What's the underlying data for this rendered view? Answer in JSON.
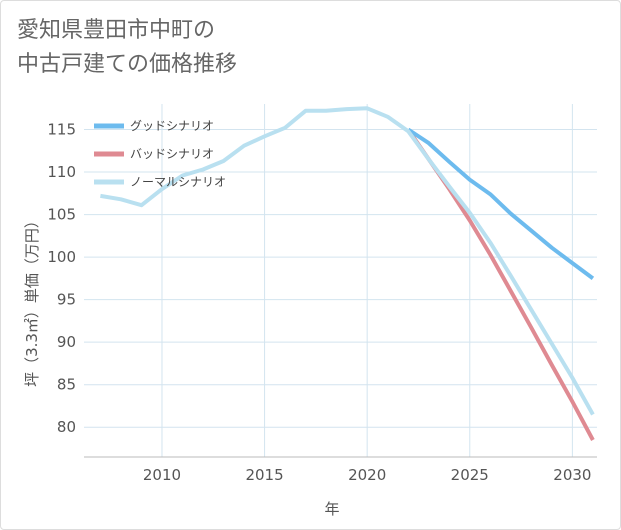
{
  "page": {
    "title_line1": "愛知県豊田市中町の",
    "title_line2": "中古戸建ての価格推移"
  },
  "colors": {
    "good": "#6dbbee",
    "bad": "#df8a92",
    "normal": "#b9e0f0",
    "grid": "#d3e4ef",
    "axis": "#555555"
  },
  "chart_data": {
    "type": "line",
    "title": "愛知県豊田市中町の中古戸建ての価格推移",
    "xlabel": "年",
    "ylabel": "坪（3.3㎡）単価（万円）",
    "xlim": [
      2006.2,
      2031.2
    ],
    "ylim": [
      76.5,
      118
    ],
    "x_ticks": [
      2010,
      2015,
      2020,
      2025,
      2030
    ],
    "y_ticks": [
      80,
      85,
      90,
      95,
      100,
      105,
      110,
      115
    ],
    "legend_position": "top-left",
    "series": [
      {
        "name": "グッドシナリオ",
        "color_key": "good",
        "x": [
          2022,
          2023,
          2024,
          2025,
          2026,
          2027,
          2028,
          2029,
          2030,
          2031
        ],
        "y": [
          115.0,
          113.4,
          111.2,
          109.1,
          107.4,
          105.1,
          103.1,
          101.1,
          99.3,
          97.5
        ]
      },
      {
        "name": "バッドシナリオ",
        "color_key": "bad",
        "x": [
          2022,
          2023,
          2024,
          2025,
          2026,
          2027,
          2028,
          2029,
          2030,
          2031
        ],
        "y": [
          115.0,
          111.5,
          108.0,
          104.3,
          100.3,
          96.0,
          91.7,
          87.3,
          83.0,
          78.5
        ]
      },
      {
        "name": "ノーマルシナリオ",
        "color_key": "normal",
        "x": [
          2007,
          2008,
          2009,
          2010,
          2011,
          2012,
          2013,
          2014,
          2015,
          2016,
          2017,
          2018,
          2019,
          2020,
          2021,
          2022,
          2023,
          2024,
          2025,
          2026,
          2027,
          2028,
          2029,
          2030,
          2031
        ],
        "y": [
          107.2,
          106.8,
          106.1,
          108.0,
          109.6,
          110.3,
          111.3,
          113.1,
          114.2,
          115.2,
          117.2,
          117.2,
          117.4,
          117.5,
          116.5,
          114.8,
          111.5,
          108.3,
          105.2,
          101.7,
          97.8,
          93.8,
          89.8,
          85.8,
          81.5
        ]
      }
    ]
  }
}
